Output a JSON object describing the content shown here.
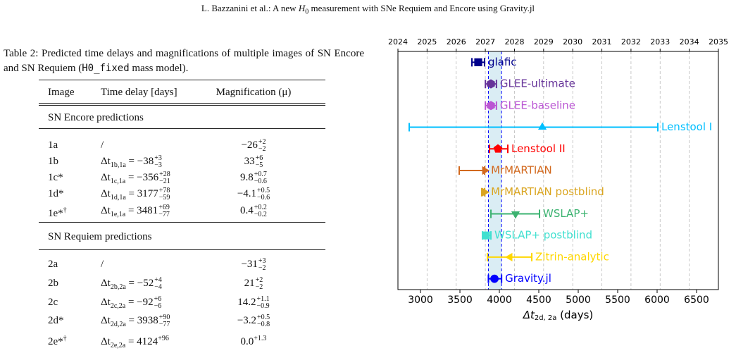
{
  "header": {
    "pre": "L. Bazzanini et al.: A new ",
    "var": "H",
    "sub": "0",
    "post": " measurement with SNe Requiem and Encore using Gravity.jl"
  },
  "caption": {
    "label": "Table 2:",
    "text": " Predicted time delays and magnifications of multiple images of SN Encore and SN Requiem (",
    "code": "H0_fixed",
    "end": " mass model)."
  },
  "table": {
    "columns": [
      "Image",
      "Time delay [days]",
      "Magnification (μ)"
    ],
    "sections": [
      {
        "title": "SN Encore predictions",
        "rows": [
          [
            "1a",
            "/",
            {
              "base": "−26",
              "sup": "+2",
              "inf": "−2"
            }
          ],
          [
            "1b",
            {
              "base": "Δt",
              "sub": "1b,1a",
              "rest": " = −38",
              "sup": "+3",
              "inf": "−3"
            },
            {
              "base": "33",
              "sup": "+6",
              "inf": "−5"
            }
          ],
          [
            "1c*",
            {
              "base": "Δt",
              "sub": "1c,1a",
              "rest": " = −356",
              "sup": "+28",
              "inf": "−21"
            },
            {
              "base": "9.8",
              "sup": "+0.7",
              "inf": "−0.6"
            }
          ],
          [
            "1d*",
            {
              "base": "Δt",
              "sub": "1d,1a",
              "rest": " = 3177",
              "sup": "+78",
              "inf": "−59"
            },
            {
              "base": "−4.1",
              "sup": "+0.5",
              "inf": "−0.6"
            }
          ],
          [
            {
              "base": "1e*",
              "sup": "†"
            },
            {
              "base": "Δt",
              "sub": "1e,1a",
              "rest": " = 3481",
              "sup": "+69",
              "inf": "−77"
            },
            {
              "base": "0.4",
              "sup": "+0.2",
              "inf": "−0.2"
            }
          ]
        ]
      },
      {
        "title": "SN Requiem predictions",
        "rows": [
          [
            "2a",
            "/",
            {
              "base": "−31",
              "sup": "+3",
              "inf": "−2"
            }
          ],
          [
            "2b",
            {
              "base": "Δt",
              "sub": "2b,2a",
              "rest": " = −52",
              "sup": "+4",
              "inf": "−4"
            },
            {
              "base": "21",
              "sup": "+2",
              "inf": "−2"
            }
          ],
          [
            "2c",
            {
              "base": "Δt",
              "sub": "2c,2a",
              "rest": " = −92",
              "sup": "+6",
              "inf": "−6"
            },
            {
              "base": "14.2",
              "sup": "+1.1",
              "inf": "−0.9"
            }
          ],
          [
            "2d*",
            {
              "base": "Δt",
              "sub": "2d,2a",
              "rest": " = 3938",
              "sup": "+90",
              "inf": "−77"
            },
            {
              "base": "−3.2",
              "sup": "+0.5",
              "inf": "−0.8"
            }
          ],
          [
            {
              "base": "2e*",
              "sup": "†"
            },
            {
              "base": "Δt",
              "sub": "2e,2a",
              "rest": " = 4124",
              "sup": "+96"
            },
            {
              "base": "0.0",
              "sup": "+1.3"
            }
          ]
        ]
      }
    ]
  },
  "chart_data": {
    "type": "errorbar",
    "xlabel": {
      "base": "Δt",
      "sub": "2d, 2a",
      "rest": " (days)"
    },
    "xlim": [
      2714,
      6777
    ],
    "xticks": [
      3000,
      3500,
      4000,
      4500,
      5000,
      5500,
      6000,
      6500
    ],
    "x2lim": [
      2024,
      2035
    ],
    "x2ticks": [
      2024,
      2025,
      2026,
      2027,
      2028,
      2029,
      2030,
      2031,
      2032,
      2033,
      2034,
      2035
    ],
    "grid": true,
    "band": [
      3861,
      4028
    ],
    "band_color": "#add8e6",
    "series": [
      {
        "name": "glafic",
        "color": "#00008b",
        "marker": "square",
        "value": 3732,
        "err_low": 80,
        "err_high": 80
      },
      {
        "name": "GLEE-ultimate",
        "color": "#663399",
        "marker": "hexagon",
        "value": 3893,
        "err_low": 70,
        "err_high": 70
      },
      {
        "name": "GLEE-baseline",
        "color": "#ba55d3",
        "marker": "hexagon",
        "value": 3893,
        "err_low": 70,
        "err_high": 70
      },
      {
        "name": "Lenstool I",
        "color": "#00bfff",
        "marker": "triangle-up",
        "value": 4545,
        "err_low": 1688,
        "err_high": 1464
      },
      {
        "name": "Lenstool II",
        "color": "#ff0000",
        "marker": "pentagon",
        "value": 3982,
        "err_low": 107,
        "err_high": 125
      },
      {
        "name": "MrMARTIAN",
        "color": "#d2691e",
        "marker": "triangle-right",
        "value": 3813,
        "err_low": 322,
        "err_high": 0
      },
      {
        "name": "MrMARTIAN postblind",
        "color": "#daa520",
        "marker": "triangle-right",
        "value": 3813,
        "err_low": 36,
        "err_high": 0
      },
      {
        "name": "WSLAP+",
        "color": "#3cb371",
        "marker": "triangle-down",
        "value": 4205,
        "err_low": 312,
        "err_high": 304
      },
      {
        "name": "WSLAP+ postblind",
        "color": "#40e0d0",
        "marker": "square",
        "value": 3830,
        "err_low": 44,
        "err_high": 63
      },
      {
        "name": "Zitrin-analytic",
        "color": "#ffd700",
        "marker": "triangle-left",
        "value": 4134,
        "err_low": 286,
        "err_high": 277
      },
      {
        "name": "Gravity.jl",
        "color": "#0000ff",
        "marker": "circle",
        "value": 3938,
        "err_low": 77,
        "err_high": 90
      }
    ]
  }
}
